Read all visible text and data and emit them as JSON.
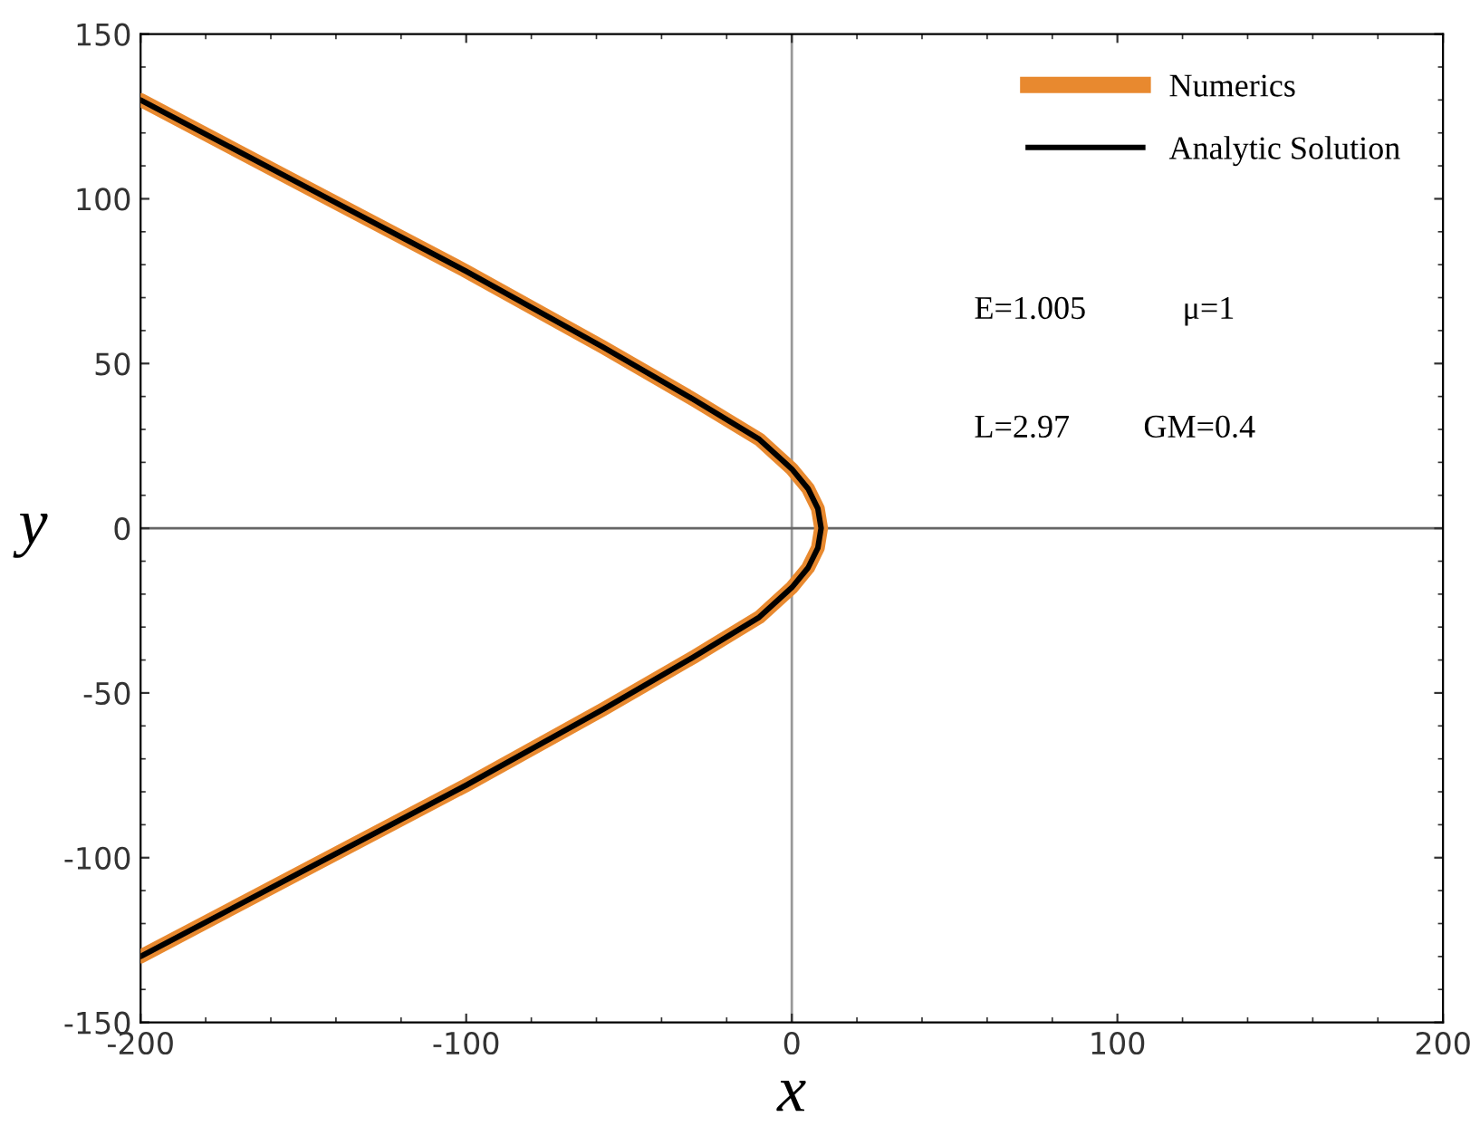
{
  "chart_data": {
    "type": "line",
    "xlabel": "x",
    "ylabel": "y",
    "xlim": [
      -200,
      200
    ],
    "ylim": [
      -150,
      150
    ],
    "xticks": [
      -200,
      -100,
      0,
      100,
      200
    ],
    "yticks": [
      -150,
      -100,
      -50,
      0,
      50,
      100,
      150
    ],
    "series": [
      {
        "name": "Numerics",
        "color": "#e8892f",
        "x": [
          -200,
          -150,
          -100,
          -58,
          -30,
          -10,
          0,
          5,
          8,
          9,
          8,
          5,
          0,
          -10,
          -30,
          -58,
          -100,
          -150,
          -200
        ],
        "values": [
          130,
          104,
          78,
          55,
          39,
          27,
          18,
          12,
          6,
          0,
          -6,
          -12,
          -18,
          -27,
          -39,
          -55,
          -78,
          -104,
          -130
        ]
      },
      {
        "name": "Analytic Solution",
        "color": "#000000",
        "x": [
          -200,
          -150,
          -100,
          -58,
          -30,
          -10,
          0,
          5,
          8,
          9,
          8,
          5,
          0,
          -10,
          -30,
          -58,
          -100,
          -150,
          -200
        ],
        "values": [
          130,
          104,
          78,
          55,
          39,
          27,
          18,
          12,
          6,
          0,
          -6,
          -12,
          -18,
          -27,
          -39,
          -55,
          -78,
          -104,
          -130
        ]
      }
    ],
    "ref_lines": [
      {
        "axis": "x",
        "value": 0,
        "color": "#999999"
      },
      {
        "axis": "y",
        "value": 0,
        "color": "#666666"
      }
    ],
    "annotations": [
      "E=1.005",
      "μ=1",
      "L=2.97",
      "GM=0.4"
    ],
    "legend": "top right",
    "grid": false
  }
}
